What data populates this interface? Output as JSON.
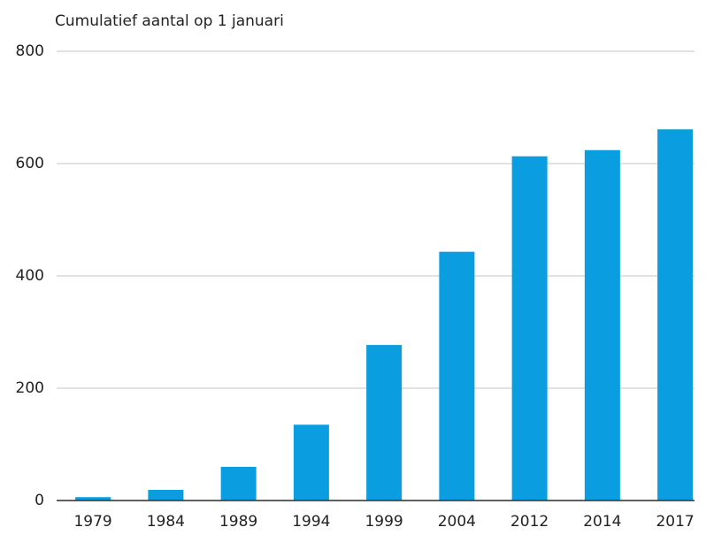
{
  "chart_data": {
    "type": "bar",
    "title": "Cumulatief aantal op 1 januari",
    "categories": [
      "1979",
      "1984",
      "1989",
      "1994",
      "1999",
      "2004",
      "2012",
      "2014",
      "2017"
    ],
    "values": [
      6,
      19,
      60,
      135,
      277,
      443,
      613,
      624,
      661
    ],
    "color": "#0a9de0",
    "ylim": [
      0,
      800
    ],
    "yticks": [
      0,
      200,
      400,
      600,
      800
    ],
    "grid": true
  }
}
